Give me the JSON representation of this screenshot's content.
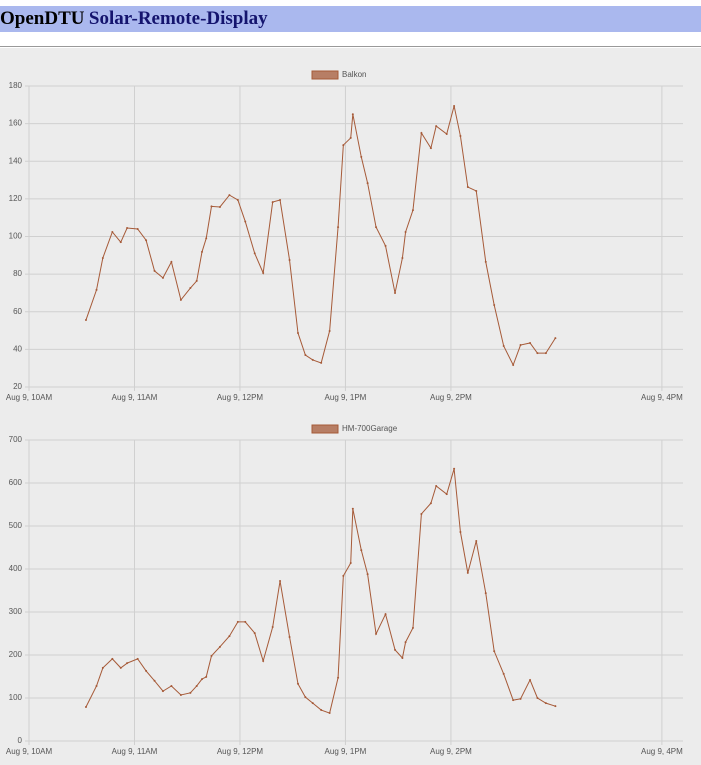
{
  "header": {
    "brand": "OpenDTU",
    "title": "Solar-Remote-Display"
  },
  "chart_data": [
    {
      "type": "line",
      "xlim": [
        10,
        16.2
      ],
      "ylim": [
        20,
        180
      ],
      "xticks": [
        {
          "value": 10,
          "label": "Aug 9, 10AM"
        },
        {
          "value": 11,
          "label": "Aug 9, 11AM"
        },
        {
          "value": 12,
          "label": "Aug 9, 12PM"
        },
        {
          "value": 13,
          "label": "Aug 9, 1PM"
        },
        {
          "value": 14,
          "label": "Aug 9, 2PM"
        },
        {
          "value": 16,
          "label": "Aug 9, 4PM"
        }
      ],
      "yticks": [
        20,
        40,
        60,
        80,
        100,
        120,
        140,
        160,
        180
      ],
      "grid": true,
      "legend": "top",
      "x": [
        10.54,
        10.64,
        10.7,
        10.79,
        10.87,
        10.93,
        11.03,
        11.11,
        11.19,
        11.27,
        11.35,
        11.44,
        11.53,
        11.59,
        11.64,
        11.68,
        11.73,
        11.81,
        11.9,
        11.98,
        12.05,
        12.14,
        12.22,
        12.31,
        12.38,
        12.47,
        12.55,
        12.62,
        12.69,
        12.77,
        12.85,
        12.93,
        12.98,
        13.05,
        13.07,
        13.15,
        13.21,
        13.29,
        13.38,
        13.47,
        13.54,
        13.57,
        13.64,
        13.72,
        13.81,
        13.86,
        13.96,
        14.03,
        14.09,
        14.16,
        14.24,
        14.33,
        14.41,
        14.5,
        14.59,
        14.66,
        14.75,
        14.82,
        14.9,
        14.99
      ],
      "series": [
        {
          "name": "Balkon",
          "color": "#a65a38",
          "values": [
            55.6,
            71.6,
            88.6,
            102.4,
            97,
            104.5,
            104,
            98,
            81.7,
            78,
            86.5,
            66.3,
            72.6,
            76.4,
            91.8,
            99,
            116,
            115.7,
            122,
            119.4,
            108,
            91,
            80.6,
            118.3,
            119.4,
            87.5,
            48.7,
            37,
            34.4,
            32.8,
            49.8,
            105,
            148.6,
            152.4,
            165,
            142.3,
            128.4,
            105,
            95,
            70,
            88.6,
            102.4,
            114,
            155,
            147,
            158.7,
            154.5,
            169.4,
            153.4,
            126.3,
            124.2,
            86.5,
            63.6,
            41.8,
            31.7,
            42.3,
            43.4,
            38,
            38,
            46
          ]
        }
      ]
    },
    {
      "type": "line",
      "xlim": [
        10,
        16.2
      ],
      "ylim": [
        0,
        700
      ],
      "xticks": [
        {
          "value": 10,
          "label": "Aug 9, 10AM"
        },
        {
          "value": 11,
          "label": "Aug 9, 11AM"
        },
        {
          "value": 12,
          "label": "Aug 9, 12PM"
        },
        {
          "value": 13,
          "label": "Aug 9, 1PM"
        },
        {
          "value": 14,
          "label": "Aug 9, 2PM"
        },
        {
          "value": 16,
          "label": "Aug 9, 4PM"
        }
      ],
      "yticks": [
        0,
        100,
        200,
        300,
        400,
        500,
        600,
        700
      ],
      "grid": true,
      "legend": "top",
      "x": [
        10.54,
        10.64,
        10.7,
        10.79,
        10.87,
        10.93,
        11.03,
        11.11,
        11.19,
        11.27,
        11.35,
        11.44,
        11.53,
        11.59,
        11.64,
        11.68,
        11.73,
        11.81,
        11.9,
        11.98,
        12.05,
        12.14,
        12.22,
        12.31,
        12.38,
        12.47,
        12.55,
        12.62,
        12.69,
        12.77,
        12.85,
        12.93,
        12.98,
        13.05,
        13.07,
        13.15,
        13.21,
        13.29,
        13.38,
        13.47,
        13.54,
        13.57,
        13.64,
        13.72,
        13.81,
        13.86,
        13.96,
        14.03,
        14.09,
        14.16,
        14.24,
        14.33,
        14.41,
        14.5,
        14.59,
        14.66,
        14.75,
        14.82,
        14.9,
        14.99
      ],
      "series": [
        {
          "name": "HM-700Garage",
          "color": "#a65a38",
          "values": [
            79,
            128,
            170,
            191,
            170,
            181,
            191,
            163,
            140,
            116,
            128,
            107,
            112,
            128,
            144,
            149,
            198,
            219,
            244,
            277,
            277,
            251,
            186,
            265,
            372,
            242,
            133,
            102,
            88,
            72,
            65,
            147,
            384,
            414,
            540,
            444,
            388,
            249,
            295,
            212,
            193,
            230,
            263,
            528,
            553,
            593,
            574,
            633,
            486,
            391,
            465,
            344,
            209,
            156,
            95,
            98,
            142,
            100,
            88,
            81
          ]
        }
      ]
    }
  ]
}
